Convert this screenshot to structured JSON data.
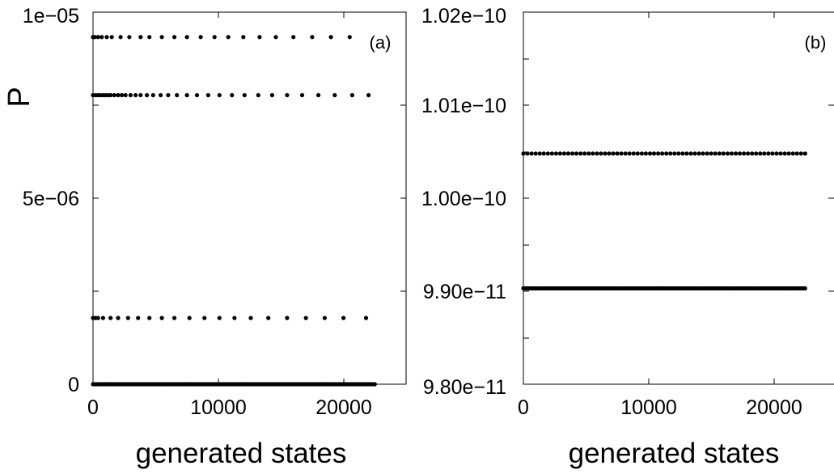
{
  "chart_data": [
    {
      "type": "scatter",
      "panel_label": "(a)",
      "xlabel": "generated states",
      "ylabel": "P",
      "xlim": [
        0,
        25000
      ],
      "ylim": [
        0,
        1e-05
      ],
      "xticks": [
        0,
        10000,
        20000
      ],
      "xtick_labels": [
        "0",
        "10000",
        "20000"
      ],
      "yticks": [
        0,
        5e-06,
        1e-05
      ],
      "ytick_labels": [
        "0",
        "5e−06",
        "1e−05"
      ],
      "y_minor_ticks": [
        2.5e-06,
        7.5e-06
      ],
      "grid": false,
      "rows": [
        {
          "y": 9.33e-06,
          "x": [
            0,
            150,
            400,
            700,
            1100,
            1500,
            2200,
            2900,
            3800,
            4500,
            5500,
            6500,
            7500,
            8600,
            9700,
            10800,
            12000,
            13300,
            14600,
            16000,
            17500,
            19000,
            20500
          ]
        },
        {
          "y": 7.77e-06,
          "x": [
            0,
            200,
            400,
            600,
            800,
            1000,
            1200,
            1400,
            1700,
            2000,
            2300,
            2600,
            3000,
            3400,
            3800,
            4300,
            4800,
            5400,
            6000,
            6700,
            7500,
            8300,
            9200,
            10100,
            11100,
            12100,
            13200,
            14300,
            15500,
            16700,
            18000,
            19300,
            20700,
            22000
          ]
        },
        {
          "y": 1.78e-06,
          "x": [
            0,
            200,
            400,
            800,
            1400,
            2000,
            2800,
            3600,
            4500,
            5500,
            6500,
            7700,
            8900,
            10100,
            11300,
            12600,
            14000,
            15500,
            17000,
            18500,
            20000,
            21800
          ]
        },
        {
          "y": 0,
          "x_start": 0,
          "x_end": 22500,
          "count": 170
        }
      ]
    },
    {
      "type": "scatter",
      "panel_label": "(b)",
      "xlabel": "generated states",
      "xlim": [
        0,
        25000
      ],
      "ylim": [
        9.8e-11,
        1.02e-10
      ],
      "xticks": [
        0,
        10000,
        20000
      ],
      "xtick_labels": [
        "0",
        "10000",
        "20000"
      ],
      "yticks": [
        9.8e-11,
        9.9e-11,
        1e-10,
        1.01e-10,
        1.02e-10
      ],
      "ytick_labels": [
        "9.80e−11",
        "9.90e−11",
        "1.00e−10",
        "1.01e−10",
        "1.02e−10"
      ],
      "y_minor_ticks": [
        9.85e-11,
        9.95e-11,
        1.005e-10,
        1.015e-10
      ],
      "grid": false,
      "rows": [
        {
          "y": 1.0048e-10,
          "x_start": 0,
          "x_end": 22500,
          "count": 70
        },
        {
          "y": 9.903e-11,
          "x_start": 0,
          "x_end": 22500,
          "count": 170
        }
      ]
    }
  ]
}
